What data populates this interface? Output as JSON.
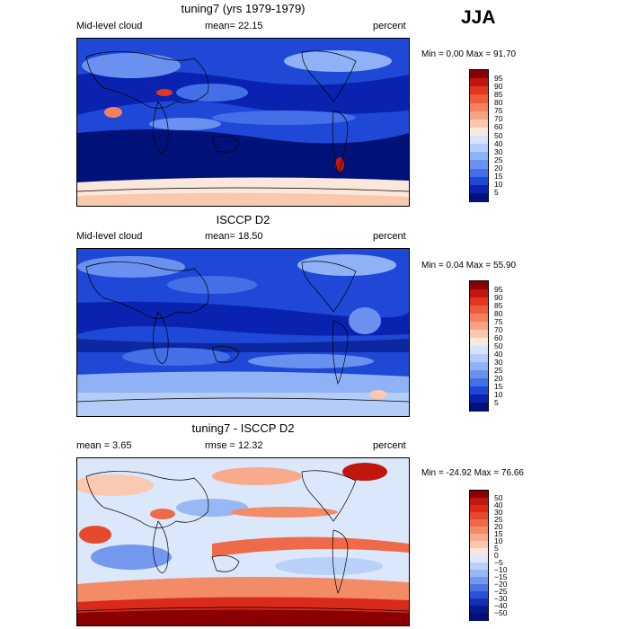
{
  "season": "JJA",
  "panels": [
    {
      "title": "tuning7 (yrs 1979-1979)",
      "left_label": "Mid-level cloud",
      "center_label": "mean=  22.15",
      "right_label": "percent",
      "minmax": "Min =   0.00 Max =  91.70",
      "colorbar_labels": [
        "95",
        "90",
        "85",
        "80",
        "75",
        "70",
        "60",
        "50",
        "40",
        "30",
        "25",
        "20",
        "15",
        "10",
        "5"
      ],
      "colorbar_colors": [
        "#8a0000",
        "#c1160d",
        "#e0381f",
        "#ec5b3a",
        "#f3805e",
        "#f6a383",
        "#f9c8ad",
        "#fbe8dc",
        "#d6e4fb",
        "#b3cdf8",
        "#8fb1f5",
        "#6a91ef",
        "#4370e6",
        "#1f48d6",
        "#0a22b0",
        "#00127a"
      ]
    },
    {
      "title": "ISCCP D2",
      "left_label": "Mid-level cloud",
      "center_label": "mean=  18.50",
      "right_label": "percent",
      "minmax": "Min =  0.04 Max =  55.90",
      "colorbar_labels": [
        "95",
        "90",
        "85",
        "80",
        "75",
        "70",
        "60",
        "50",
        "40",
        "30",
        "25",
        "20",
        "15",
        "10",
        "5"
      ],
      "colorbar_colors": [
        "#8a0000",
        "#c1160d",
        "#e0381f",
        "#ec5b3a",
        "#f3805e",
        "#f6a383",
        "#f9c8ad",
        "#fbe8dc",
        "#d6e4fb",
        "#b3cdf8",
        "#8fb1f5",
        "#6a91ef",
        "#4370e6",
        "#1f48d6",
        "#0a22b0",
        "#00127a"
      ]
    },
    {
      "title": "tuning7 - ISCCP D2",
      "left_label": "mean =   3.65",
      "center_label": "rmse =  12.32",
      "right_label": "percent",
      "minmax": "Min = -24.92 Max =  76.66",
      "colorbar_labels": [
        "50",
        "40",
        "30",
        "25",
        "20",
        "15",
        "10",
        "5",
        "0",
        "−5",
        "−10",
        "−15",
        "−20",
        "−25",
        "−30",
        "−40",
        "−50"
      ],
      "colorbar_colors": [
        "#8a0000",
        "#c1160d",
        "#d92a1a",
        "#e64a2e",
        "#ef6a48",
        "#f48b67",
        "#f7ab8c",
        "#fac9b2",
        "#fce6db",
        "#dbe7fb",
        "#b9d1f8",
        "#97b8f4",
        "#7398ee",
        "#4c76e5",
        "#2a52d8",
        "#1030b8",
        "#051a8a",
        "#00107a"
      ]
    }
  ],
  "chart_data": [
    {
      "type": "heatmap",
      "title": "tuning7 (yrs 1979-1979)",
      "variable": "Mid-level cloud",
      "units": "percent",
      "season": "JJA",
      "mean": 22.15,
      "min": 0.0,
      "max": 91.7,
      "contour_levels": [
        5,
        10,
        15,
        20,
        25,
        30,
        40,
        50,
        60,
        70,
        75,
        80,
        85,
        90,
        95
      ]
    },
    {
      "type": "heatmap",
      "title": "ISCCP D2",
      "variable": "Mid-level cloud",
      "units": "percent",
      "season": "JJA",
      "mean": 18.5,
      "min": 0.04,
      "max": 55.9,
      "contour_levels": [
        5,
        10,
        15,
        20,
        25,
        30,
        40,
        50,
        60,
        70,
        75,
        80,
        85,
        90,
        95
      ]
    },
    {
      "type": "heatmap",
      "title": "tuning7 - ISCCP D2",
      "units": "percent",
      "season": "JJA",
      "mean": 3.65,
      "rmse": 12.32,
      "min": -24.92,
      "max": 76.66,
      "contour_levels": [
        -50,
        -40,
        -30,
        -25,
        -20,
        -15,
        -10,
        -5,
        0,
        5,
        10,
        15,
        20,
        25,
        30,
        40,
        50
      ]
    }
  ]
}
